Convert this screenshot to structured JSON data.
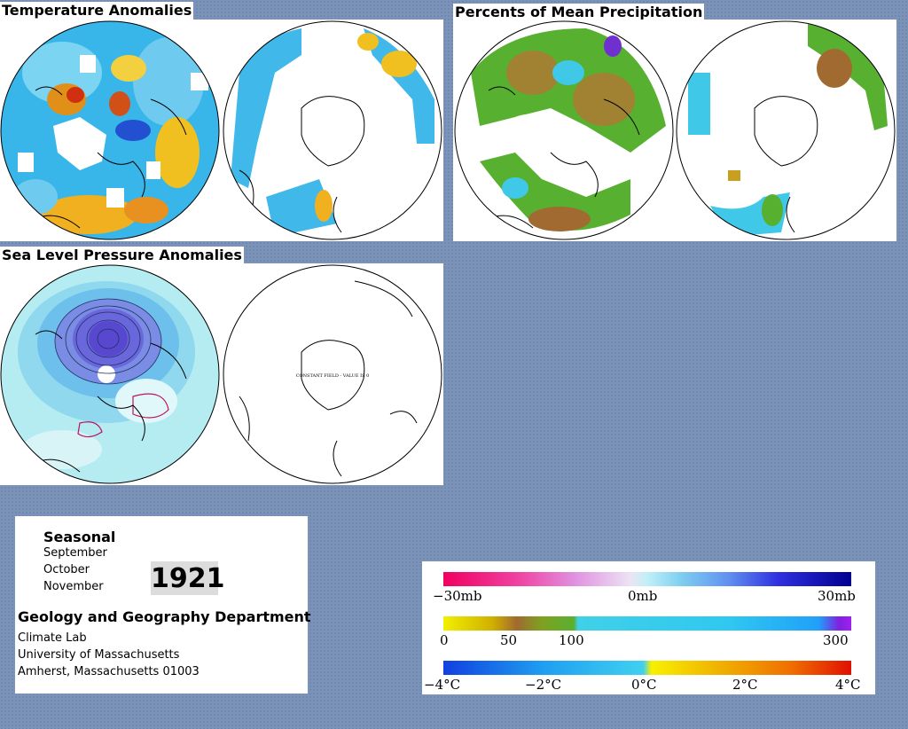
{
  "panels": {
    "temperature": {
      "title": "Temperature Anomalies"
    },
    "precipitation": {
      "title": "Percents of Mean Precipitation"
    },
    "pressure": {
      "title": "Sea Level Pressure Anomalies",
      "south_map_note": "CONSTANT FIELD - VALUE IS 0"
    }
  },
  "info": {
    "season": "Seasonal",
    "months": [
      "September",
      "October",
      "November"
    ],
    "year": "1921",
    "department": "Geology and Geography Department",
    "address_lines": [
      "Climate Lab",
      "University of Massachusetts",
      "Amherst, Massachusetts 01003"
    ]
  },
  "legends": {
    "pressure": {
      "labels": [
        "−30mb",
        "0mb",
        "30mb"
      ]
    },
    "precipitation": {
      "labels": [
        "0",
        "50",
        "100",
        "300"
      ]
    },
    "temperature": {
      "labels": [
        "−4°C",
        "−2°C",
        "0°C",
        "2°C",
        "4°C"
      ]
    }
  },
  "colors": {
    "background": "#7b93b8",
    "ocean_anomaly": "#2bb2e8",
    "warm": "#f0b400",
    "cold": "#3c5fd6",
    "dry": "#a08232",
    "wet": "#58b030",
    "low_pressure": "#5040d0"
  }
}
